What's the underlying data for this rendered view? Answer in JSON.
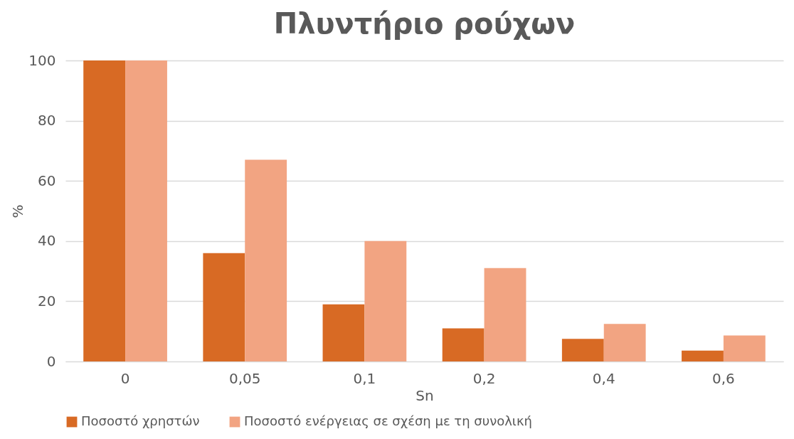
{
  "chart_data": {
    "type": "bar",
    "title": "Πλυντήριο ρούχων",
    "xlabel": "Sn",
    "ylabel": "%",
    "categories": [
      "0",
      "0,05",
      "0,1",
      "0,2",
      "0,4",
      "0,6"
    ],
    "series": [
      {
        "name": "Ποσοστό χρηστών",
        "color": "#d86a24",
        "values": [
          100,
          36,
          19,
          11,
          7.5,
          3.6
        ]
      },
      {
        "name": "Ποσοστό ενέργειας σε σχέση με τη συνολική",
        "color": "#f2a482",
        "values": [
          100,
          67,
          40,
          31,
          12.5,
          8.6
        ]
      }
    ],
    "ylim": [
      0,
      100
    ],
    "yticks": [
      0,
      20,
      40,
      60,
      80,
      100
    ],
    "grid": "y",
    "legend": "bottom"
  }
}
